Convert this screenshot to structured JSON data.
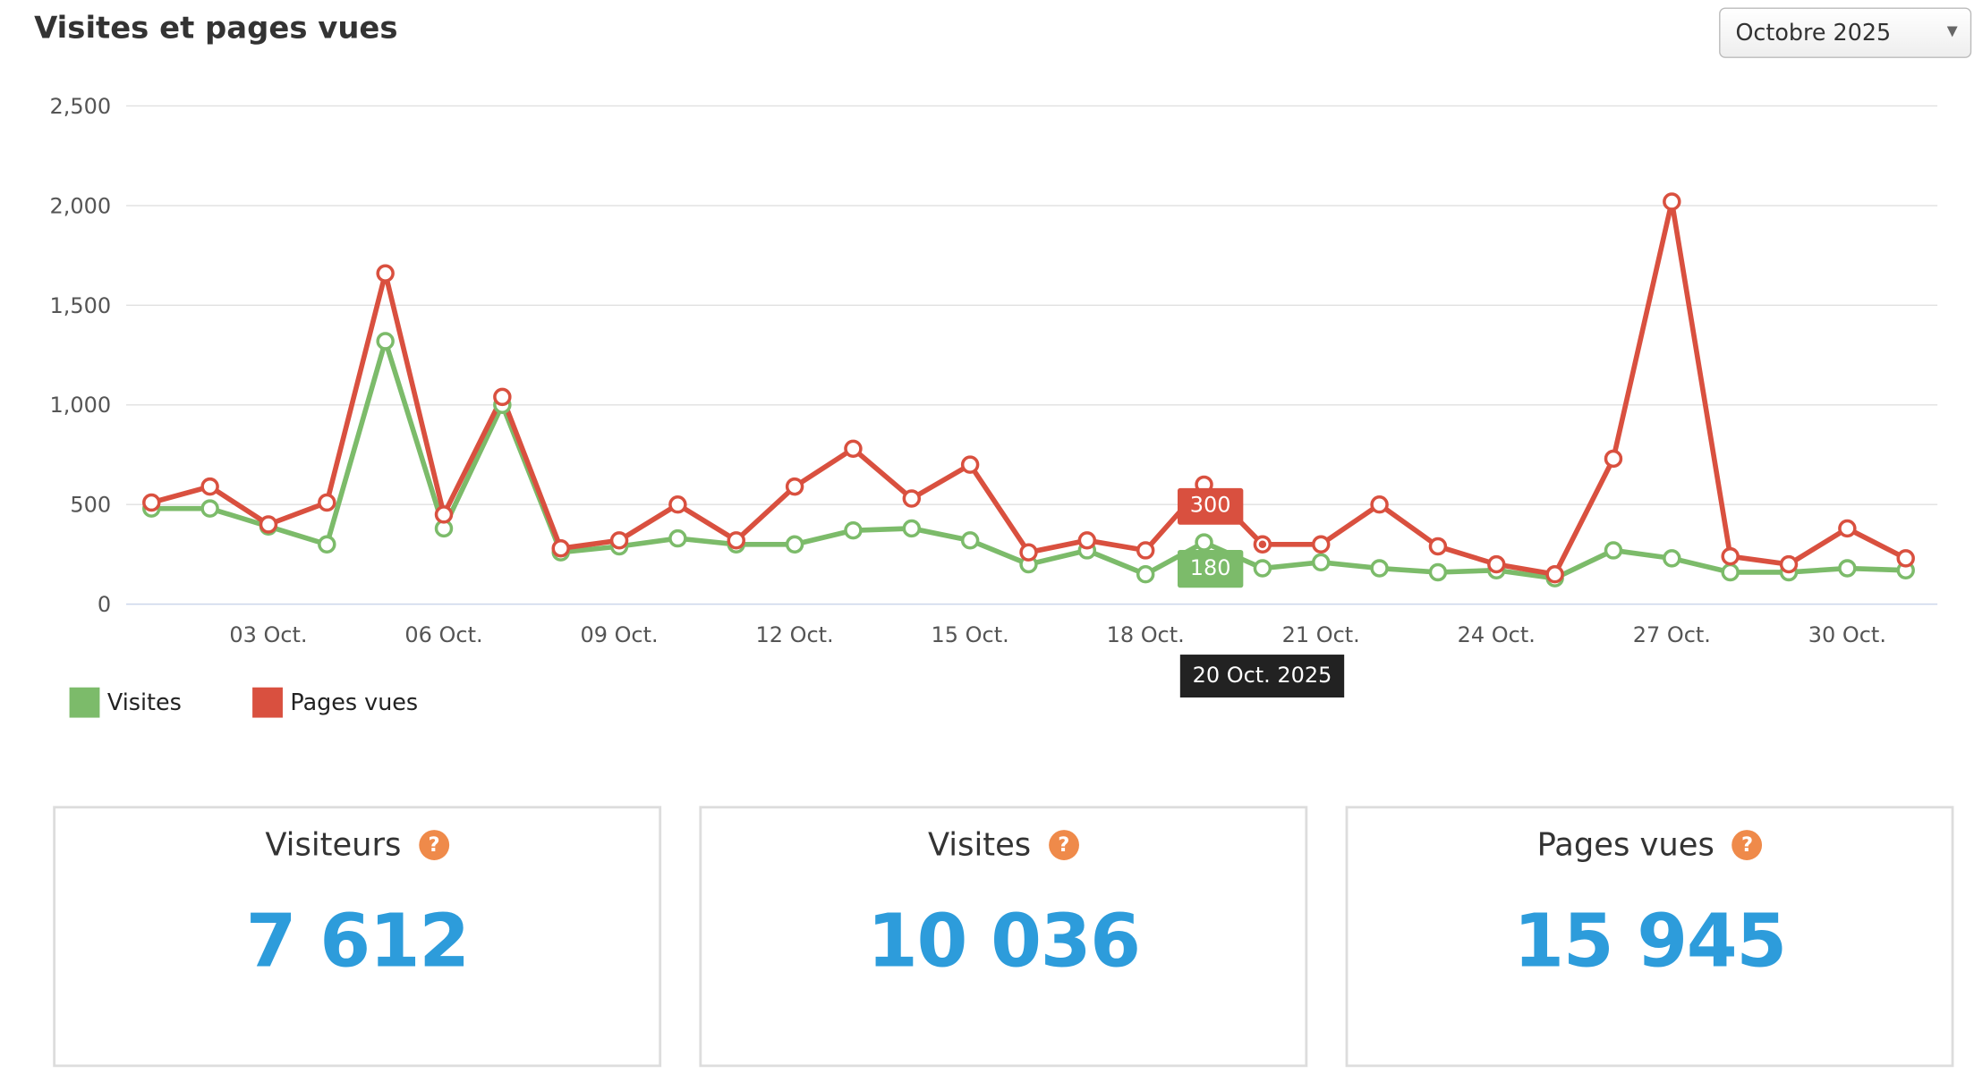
{
  "header": {
    "title": "Visites et pages vues",
    "period_select": "Octobre 2025"
  },
  "chart_data": {
    "type": "line",
    "title": "",
    "x": [
      "01 Oct.",
      "02 Oct.",
      "03 Oct.",
      "04 Oct.",
      "05 Oct.",
      "06 Oct.",
      "07 Oct.",
      "08 Oct.",
      "09 Oct.",
      "10 Oct.",
      "11 Oct.",
      "12 Oct.",
      "13 Oct.",
      "14 Oct.",
      "15 Oct.",
      "16 Oct.",
      "17 Oct.",
      "18 Oct.",
      "19 Oct.",
      "20 Oct.",
      "21 Oct.",
      "22 Oct.",
      "23 Oct.",
      "24 Oct.",
      "25 Oct.",
      "26 Oct.",
      "27 Oct.",
      "28 Oct.",
      "29 Oct.",
      "30 Oct.",
      "31 Oct."
    ],
    "x_tick_labels": [
      "03 Oct.",
      "06 Oct.",
      "09 Oct.",
      "12 Oct.",
      "15 Oct.",
      "18 Oct.",
      "21 Oct.",
      "24 Oct.",
      "27 Oct.",
      "30 Oct."
    ],
    "y_tick_labels": [
      "0",
      "500",
      "1,000",
      "1,500",
      "2,000",
      "2,500"
    ],
    "ylim": [
      0,
      2500
    ],
    "grid": true,
    "legend_position": "bottom-left",
    "series": [
      {
        "name": "Visites",
        "color": "#7cbb6a",
        "values": [
          480,
          480,
          390,
          300,
          1320,
          380,
          1000,
          260,
          290,
          330,
          300,
          300,
          370,
          380,
          320,
          200,
          270,
          150,
          310,
          180,
          210,
          180,
          160,
          170,
          130,
          270,
          230,
          160,
          160,
          180,
          170
        ]
      },
      {
        "name": "Pages vues",
        "color": "#d9503f",
        "values": [
          510,
          590,
          400,
          510,
          1660,
          450,
          1040,
          280,
          320,
          500,
          320,
          590,
          780,
          530,
          700,
          260,
          320,
          270,
          600,
          300,
          300,
          500,
          290,
          200,
          150,
          730,
          2020,
          240,
          200,
          380,
          230
        ]
      }
    ],
    "tooltip": {
      "date": "20 Oct. 2025",
      "pages_vues": "300",
      "visites": "180"
    }
  },
  "stats": [
    {
      "label": "Visiteurs",
      "value": "7 612"
    },
    {
      "label": "Visites",
      "value": "10 036"
    },
    {
      "label": "Pages vues",
      "value": "15 945"
    }
  ],
  "help_glyph": "?"
}
